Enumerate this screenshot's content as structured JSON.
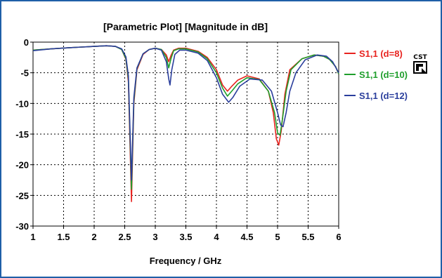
{
  "chart_data": {
    "type": "line",
    "title": "[Parametric Plot] [Magnitude in dB]",
    "xlabel": "Frequency / GHz",
    "ylabel": "",
    "xlim": [
      1,
      6
    ],
    "ylim": [
      -30,
      0
    ],
    "xticks": [
      "1",
      "1.5",
      "2",
      "2.5",
      "3",
      "3.5",
      "4",
      "4.5",
      "5",
      "5.5",
      "6"
    ],
    "yticks": [
      "0",
      "-5",
      "-10",
      "-15",
      "-20",
      "-25",
      "-30"
    ],
    "grid": true,
    "legend_position": "right",
    "series": [
      {
        "name": "S1,1 (d=8)",
        "color": "#e8231f",
        "x": [
          1.0,
          1.3,
          1.6,
          1.8,
          2.0,
          2.2,
          2.35,
          2.45,
          2.52,
          2.56,
          2.59,
          2.61,
          2.65,
          2.7,
          2.8,
          2.9,
          3.0,
          3.1,
          3.18,
          3.22,
          3.26,
          3.3,
          3.38,
          3.5,
          3.7,
          3.85,
          4.0,
          4.1,
          4.18,
          4.25,
          4.35,
          4.5,
          4.7,
          4.85,
          4.93,
          4.98,
          5.02,
          5.06,
          5.12,
          5.2,
          5.4,
          5.6,
          5.75,
          5.85,
          5.95,
          6.0
        ],
        "y": [
          -1.3,
          -1.1,
          -0.9,
          -0.8,
          -0.7,
          -0.6,
          -0.7,
          -1.2,
          -2.8,
          -6.5,
          -18.0,
          -26.0,
          -10.0,
          -4.5,
          -2.0,
          -1.2,
          -1.0,
          -1.2,
          -2.1,
          -3.2,
          -2.1,
          -1.3,
          -1.0,
          -1.0,
          -1.5,
          -2.5,
          -4.5,
          -7.0,
          -8.0,
          -7.2,
          -6.2,
          -5.5,
          -6.0,
          -8.0,
          -11.5,
          -15.8,
          -16.8,
          -14.5,
          -8.5,
          -4.5,
          -2.7,
          -2.1,
          -2.3,
          -2.8,
          -4.0,
          -5.2
        ]
      },
      {
        "name": "S1,1 (d=10)",
        "color": "#1f9e2c",
        "x": [
          1.0,
          1.3,
          1.6,
          1.8,
          2.0,
          2.2,
          2.35,
          2.45,
          2.52,
          2.56,
          2.59,
          2.61,
          2.65,
          2.7,
          2.8,
          2.9,
          3.0,
          3.1,
          3.18,
          3.22,
          3.26,
          3.3,
          3.38,
          3.5,
          3.7,
          3.85,
          4.0,
          4.1,
          4.18,
          4.25,
          4.35,
          4.5,
          4.7,
          4.85,
          4.95,
          5.0,
          5.04,
          5.08,
          5.14,
          5.22,
          5.4,
          5.6,
          5.75,
          5.85,
          5.95,
          6.0
        ],
        "y": [
          -1.3,
          -1.1,
          -0.9,
          -0.8,
          -0.7,
          -0.6,
          -0.7,
          -1.2,
          -2.7,
          -6.0,
          -16.5,
          -24.0,
          -9.5,
          -4.3,
          -1.9,
          -1.2,
          -1.0,
          -1.2,
          -2.5,
          -4.2,
          -2.6,
          -1.4,
          -1.1,
          -1.1,
          -1.6,
          -2.7,
          -5.0,
          -7.5,
          -8.8,
          -8.0,
          -6.8,
          -5.8,
          -6.1,
          -8.0,
          -11.5,
          -14.8,
          -15.2,
          -12.5,
          -8.0,
          -4.5,
          -2.7,
          -2.1,
          -2.3,
          -2.8,
          -4.0,
          -5.2
        ]
      },
      {
        "name": "S1,1 (d=12)",
        "color": "#2a3e9c",
        "x": [
          1.0,
          1.3,
          1.6,
          1.8,
          2.0,
          2.2,
          2.35,
          2.45,
          2.52,
          2.56,
          2.59,
          2.61,
          2.65,
          2.7,
          2.8,
          2.9,
          3.0,
          3.1,
          3.18,
          3.22,
          3.24,
          3.27,
          3.32,
          3.4,
          3.5,
          3.7,
          3.85,
          4.0,
          4.1,
          4.2,
          4.27,
          4.38,
          4.55,
          4.75,
          4.9,
          5.0,
          5.05,
          5.09,
          5.14,
          5.2,
          5.3,
          5.45,
          5.65,
          5.8,
          5.9,
          6.0
        ],
        "y": [
          -1.4,
          -1.1,
          -0.9,
          -0.8,
          -0.7,
          -0.6,
          -0.7,
          -1.1,
          -2.4,
          -5.5,
          -15.5,
          -22.5,
          -9.0,
          -4.2,
          -1.9,
          -1.2,
          -1.0,
          -1.3,
          -3.2,
          -6.0,
          -7.0,
          -4.5,
          -2.0,
          -1.3,
          -1.3,
          -1.8,
          -3.0,
          -5.8,
          -8.5,
          -9.8,
          -9.0,
          -7.2,
          -6.0,
          -6.2,
          -8.0,
          -11.5,
          -13.5,
          -13.8,
          -11.5,
          -8.0,
          -5.0,
          -2.9,
          -2.1,
          -2.3,
          -3.2,
          -5.0
        ]
      }
    ]
  },
  "logo": {
    "text": "CST"
  }
}
